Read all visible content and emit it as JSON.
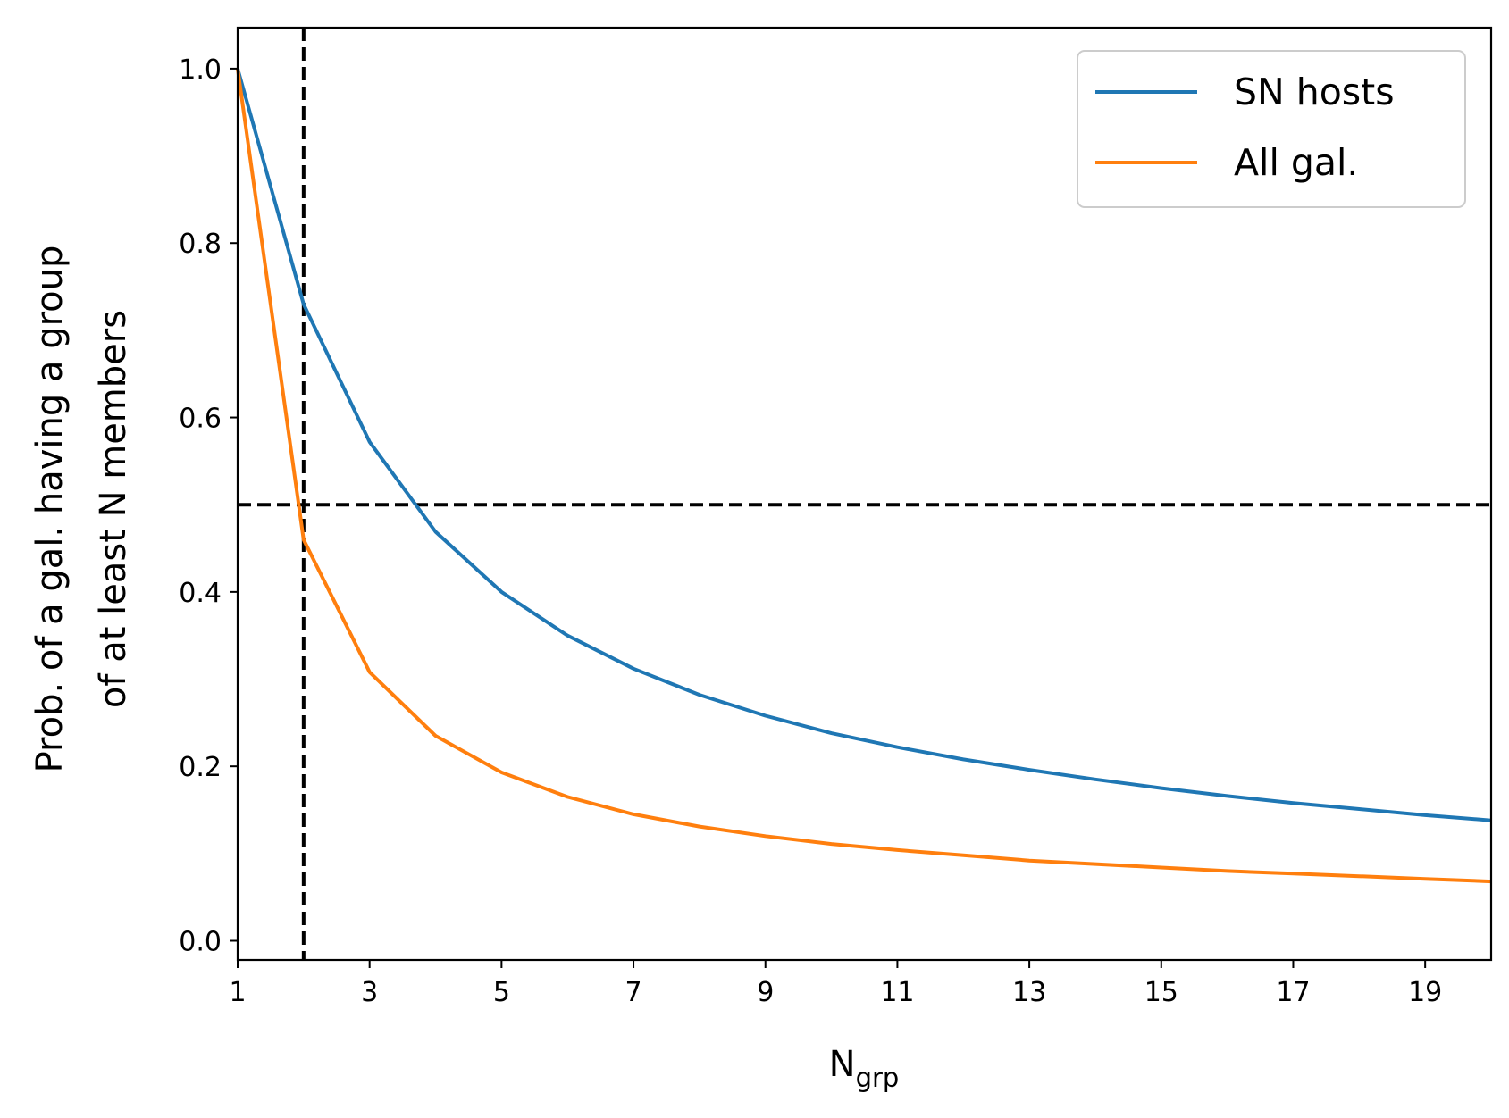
{
  "chart_data": {
    "type": "line",
    "x": [
      1,
      2,
      3,
      4,
      5,
      6,
      7,
      8,
      9,
      10,
      11,
      12,
      13,
      14,
      15,
      16,
      17,
      18,
      19,
      20
    ],
    "series": [
      {
        "name": "SN hosts",
        "color": "#1f77b4",
        "values": [
          1.0,
          0.73,
          0.572,
          0.469,
          0.4,
          0.35,
          0.312,
          0.282,
          0.258,
          0.238,
          0.222,
          0.208,
          0.196,
          0.185,
          0.175,
          0.166,
          0.158,
          0.151,
          0.144,
          0.138
        ]
      },
      {
        "name": "All gal.",
        "color": "#ff7f0e",
        "values": [
          1.0,
          0.46,
          0.308,
          0.235,
          0.193,
          0.165,
          0.145,
          0.131,
          0.12,
          0.111,
          0.104,
          0.098,
          0.092,
          0.088,
          0.084,
          0.08,
          0.077,
          0.074,
          0.071,
          0.068
        ]
      }
    ],
    "reference_lines": [
      {
        "orientation": "horizontal",
        "value": 0.5,
        "style": "dashed",
        "color": "#000000"
      },
      {
        "orientation": "vertical",
        "value": 2,
        "style": "dashed",
        "color": "#000000"
      }
    ],
    "xlim": [
      1,
      20
    ],
    "ylim": [
      -0.022,
      1.047
    ],
    "x_ticks": [
      "1",
      "3",
      "5",
      "7",
      "9",
      "11",
      "13",
      "15",
      "17",
      "19"
    ],
    "y_ticks": [
      "0.0",
      "0.2",
      "0.4",
      "0.6",
      "0.8",
      "1.0"
    ],
    "xlabel_main": "N",
    "xlabel_sub": "grp",
    "ylabel_line1": "Prob. of a gal. having a group",
    "ylabel_line2": "of at least N members",
    "grid": false,
    "legend_position": "top-right"
  }
}
